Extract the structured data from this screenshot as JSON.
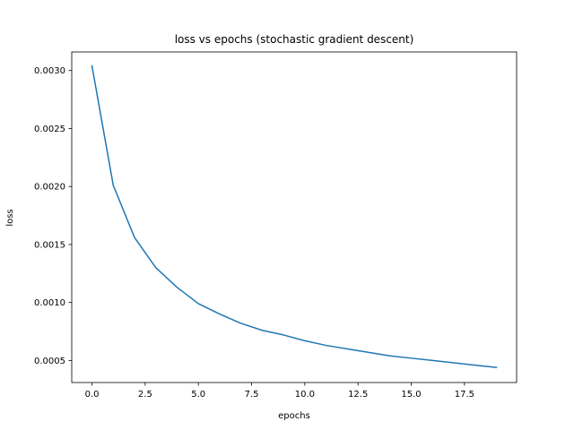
{
  "chart_data": {
    "type": "line",
    "title": "loss vs epochs (stochastic gradient descent)",
    "xlabel": "epochs",
    "ylabel": "loss",
    "xlim": [
      -0.95,
      19.95
    ],
    "ylim": [
      0.00031,
      0.00316
    ],
    "xticks": [
      0.0,
      2.5,
      5.0,
      7.5,
      10.0,
      12.5,
      15.0,
      17.5
    ],
    "xtick_labels": [
      "0.0",
      "2.5",
      "5.0",
      "7.5",
      "10.0",
      "12.5",
      "15.0",
      "17.5"
    ],
    "yticks": [
      0.0005,
      0.001,
      0.0015,
      0.002,
      0.0025,
      0.003
    ],
    "ytick_labels": [
      "0.0005",
      "0.0010",
      "0.0015",
      "0.0020",
      "0.0025",
      "0.0030"
    ],
    "grid": false,
    "series": [
      {
        "name": "loss",
        "color": "#1f77b4",
        "x": [
          0,
          1,
          2,
          3,
          4,
          5,
          6,
          7,
          8,
          9,
          10,
          11,
          12,
          13,
          14,
          15,
          16,
          17,
          18,
          19
        ],
        "y": [
          0.00304,
          0.00201,
          0.00156,
          0.0013,
          0.00113,
          0.00099,
          0.0009,
          0.00082,
          0.00076,
          0.00072,
          0.00067,
          0.00063,
          0.0006,
          0.00057,
          0.00054,
          0.00052,
          0.0005,
          0.00048,
          0.00046,
          0.00044
        ]
      }
    ]
  }
}
